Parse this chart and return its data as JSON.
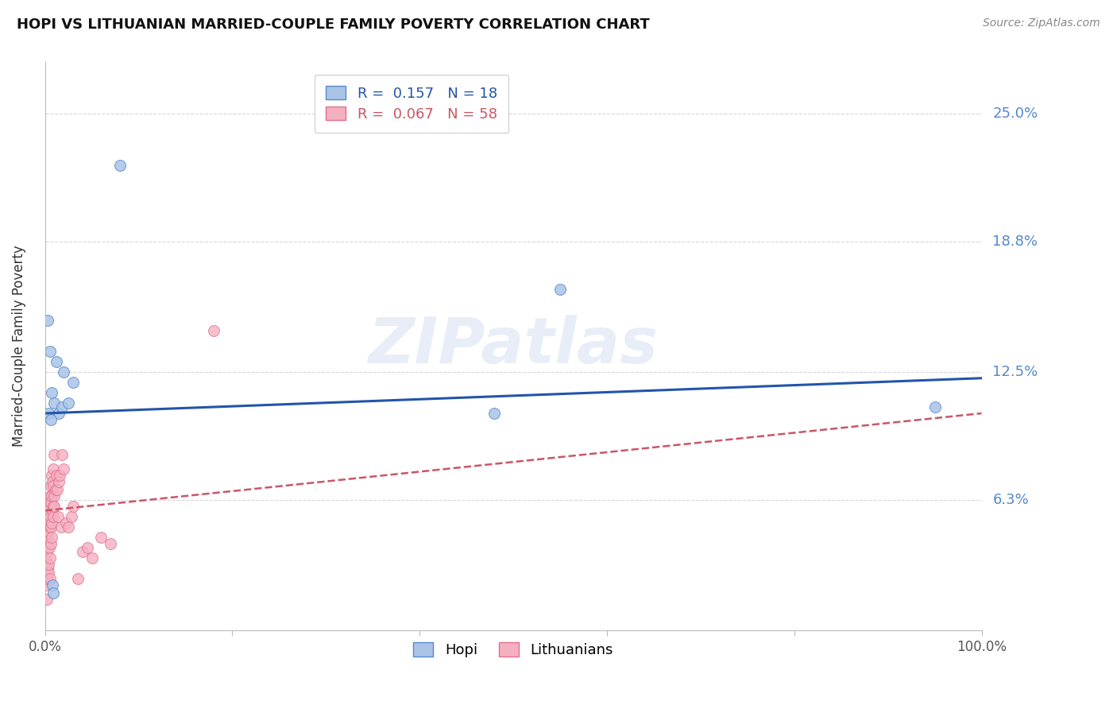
{
  "title": "HOPI VS LITHUANIAN MARRIED-COUPLE FAMILY POVERTY CORRELATION CHART",
  "source": "Source: ZipAtlas.com",
  "ylabel": "Married-Couple Family Poverty",
  "watermark": "ZIPatlas",
  "ytick_labels": [
    "6.3%",
    "12.5%",
    "18.8%",
    "25.0%"
  ],
  "ytick_values": [
    6.3,
    12.5,
    18.8,
    25.0
  ],
  "xlim": [
    0.0,
    100.0
  ],
  "ylim": [
    0.0,
    27.5
  ],
  "background_color": "#ffffff",
  "grid_color": "#cccccc",
  "hopi_color": "#aac4e8",
  "hopi_edge_color": "#5588cc",
  "lith_color": "#f5b0c0",
  "lith_edge_color": "#e07090",
  "trend_hopi_color": "#2255aa",
  "trend_lith_color": "#cc5566",
  "right_label_color": "#5588cc",
  "hopi_R": 0.157,
  "hopi_N": 18,
  "lith_R": 0.067,
  "lith_N": 58,
  "marker_size": 100,
  "hopi_points_x": [
    0.3,
    0.5,
    0.7,
    1.0,
    1.2,
    1.5,
    1.8,
    2.0,
    2.5,
    3.0,
    8.0,
    0.4,
    0.6,
    0.8,
    0.9,
    55.0,
    95.0,
    48.0
  ],
  "hopi_points_y": [
    15.0,
    13.5,
    11.5,
    11.0,
    13.0,
    10.5,
    10.8,
    12.5,
    11.0,
    12.0,
    22.5,
    10.5,
    10.2,
    2.2,
    1.8,
    16.5,
    10.8,
    10.5
  ],
  "lith_points_x": [
    0.1,
    0.15,
    0.15,
    0.2,
    0.2,
    0.2,
    0.25,
    0.25,
    0.3,
    0.3,
    0.35,
    0.35,
    0.4,
    0.4,
    0.45,
    0.45,
    0.5,
    0.5,
    0.5,
    0.55,
    0.55,
    0.6,
    0.6,
    0.65,
    0.65,
    0.7,
    0.7,
    0.75,
    0.75,
    0.8,
    0.8,
    0.85,
    0.85,
    0.9,
    0.9,
    0.95,
    1.0,
    1.0,
    1.1,
    1.2,
    1.3,
    1.4,
    1.5,
    1.6,
    1.7,
    1.8,
    2.0,
    2.2,
    2.5,
    2.8,
    3.0,
    3.5,
    4.0,
    4.5,
    5.0,
    6.0,
    7.0,
    18.0
  ],
  "lith_points_y": [
    4.2,
    2.2,
    3.5,
    1.5,
    2.5,
    3.8,
    4.5,
    5.5,
    3.0,
    4.8,
    2.8,
    5.2,
    3.2,
    6.0,
    4.0,
    5.8,
    2.5,
    5.0,
    6.5,
    3.5,
    5.5,
    4.2,
    6.2,
    5.0,
    7.0,
    4.5,
    6.5,
    5.2,
    7.5,
    5.8,
    7.2,
    6.0,
    7.8,
    5.5,
    7.0,
    6.5,
    6.0,
    8.5,
    6.8,
    7.5,
    6.8,
    5.5,
    7.2,
    7.5,
    5.0,
    8.5,
    7.8,
    5.2,
    5.0,
    5.5,
    6.0,
    2.5,
    3.8,
    4.0,
    3.5,
    4.5,
    4.2,
    14.5
  ],
  "hopi_trend_x0": 0.0,
  "hopi_trend_y0": 10.5,
  "hopi_trend_x1": 100.0,
  "hopi_trend_y1": 12.2,
  "lith_trend_x0": 0.0,
  "lith_trend_y0": 5.8,
  "lith_trend_x1": 100.0,
  "lith_trend_y1": 10.5
}
